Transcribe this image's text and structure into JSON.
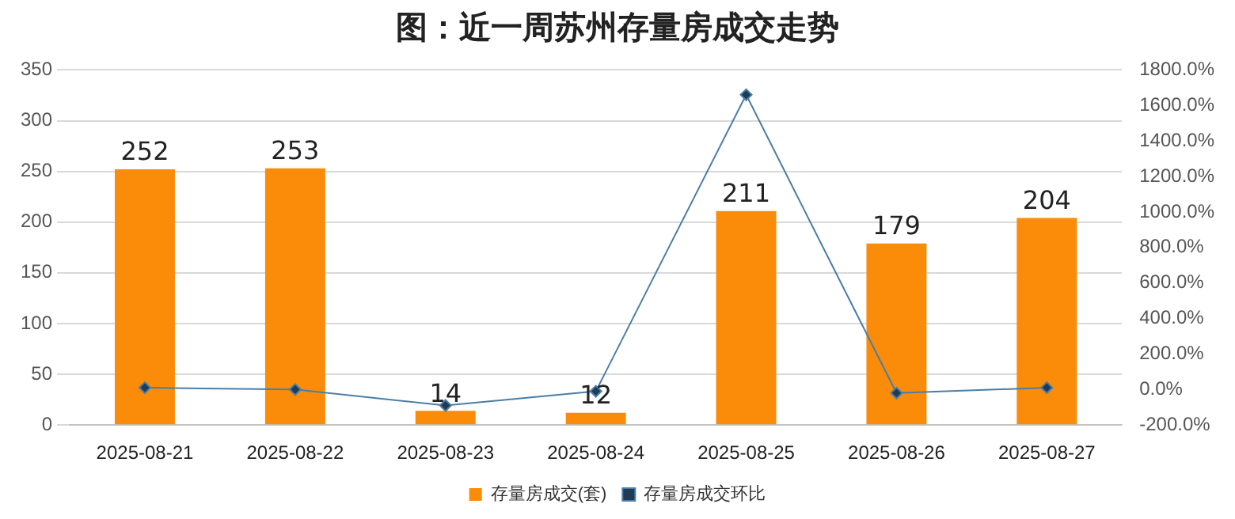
{
  "chart_data": {
    "type": "bar",
    "title": "图：近一周苏州存量房成交走势",
    "categories": [
      "2025-08-21",
      "2025-08-22",
      "2025-08-23",
      "2025-08-24",
      "2025-08-25",
      "2025-08-26",
      "2025-08-27"
    ],
    "series": [
      {
        "name": "存量房成交(套)",
        "color": "#fa8c0a",
        "values": [
          252,
          253,
          14,
          12,
          211,
          179,
          204
        ],
        "data_labels": true
      },
      {
        "name": "存量房成交环比",
        "type": "line",
        "axis": "y2",
        "color": "#4a7ea8",
        "marker": "diamond",
        "values": [
          10,
          0,
          -90,
          -10,
          1660,
          -20,
          10
        ]
      }
    ],
    "ylim": [
      0,
      350
    ],
    "yticks": [
      0,
      50,
      100,
      150,
      200,
      250,
      300,
      350
    ],
    "y2lim": [
      -200,
      1800
    ],
    "y2ticks": [
      {
        "value": -200,
        "label": "-200.0%"
      },
      {
        "value": 0,
        "label": "0.0%"
      },
      {
        "value": 200,
        "label": "200.0%"
      },
      {
        "value": 400,
        "label": "400.0%"
      },
      {
        "value": 600,
        "label": "600.0%"
      },
      {
        "value": 800,
        "label": "800.0%"
      },
      {
        "value": 1000,
        "label": "1000.0%"
      },
      {
        "value": 1200,
        "label": "1200.0%"
      },
      {
        "value": 1400,
        "label": "1400.0%"
      },
      {
        "value": 1600,
        "label": "1600.0%"
      },
      {
        "value": 1800,
        "label": "1800.0%"
      }
    ],
    "grid": "y",
    "legend": "bottom"
  }
}
